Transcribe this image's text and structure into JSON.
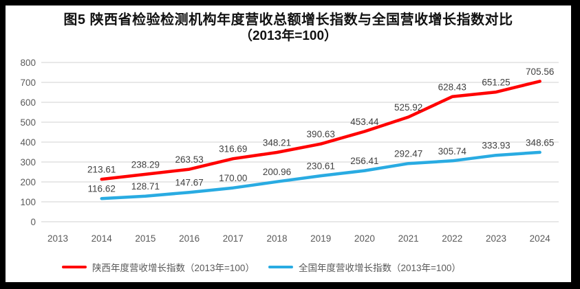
{
  "title": {
    "line1": "图5  陕西省检验检测机构年度营收总额增长指数与全国营收增长指数对比",
    "line2": "（2013年=100）"
  },
  "chart_data": {
    "type": "line",
    "title": "图5 陕西省检验检测机构年度营收总额增长指数与全国营收增长指数对比（2013年=100）",
    "categories": [
      "2013",
      "2014",
      "2015",
      "2016",
      "2017",
      "2018",
      "2019",
      "2020",
      "2021",
      "2022",
      "2023",
      "2024"
    ],
    "series": [
      {
        "name": "陕西年度营收增长指数（2013年=100）",
        "color": "#FF0000",
        "values": [
          null,
          213.61,
          238.29,
          263.53,
          316.69,
          348.21,
          390.63,
          453.44,
          525.92,
          628.43,
          651.25,
          705.56
        ]
      },
      {
        "name": "全国年度营收增长指数（2013年=100）",
        "color": "#29ABE2",
        "values": [
          null,
          116.62,
          128.71,
          147.67,
          170.0,
          200.96,
          230.61,
          256.41,
          292.47,
          305.74,
          333.93,
          348.65
        ]
      }
    ],
    "ylim": [
      0,
      800
    ],
    "yticks": [
      0,
      100,
      200,
      300,
      400,
      500,
      600,
      700,
      800
    ],
    "grid": true,
    "legend_position": "bottom",
    "xlabel": "",
    "ylabel": "",
    "label_decimals": 2,
    "style": {
      "gridline": "#D9D9D9",
      "axis_text": "#595959",
      "point_label_text": "#404040",
      "title_text": "#111111",
      "frame_border": "#000000",
      "background": "#FFFFFF"
    }
  }
}
